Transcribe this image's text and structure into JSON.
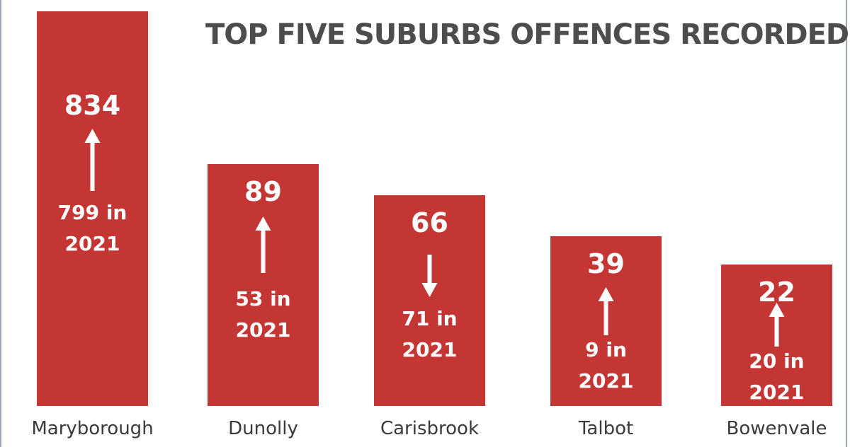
{
  "chart_data": {
    "type": "bar",
    "title": "TOP FIVE SUBURBS OFFENCES RECORDED",
    "xlabel": "",
    "ylabel": "",
    "categories": [
      "Maryborough",
      "Dunolly",
      "Carisbrook",
      "Talbot",
      "Bowenvale"
    ],
    "values": [
      834,
      89,
      66,
      39,
      22
    ],
    "previous_labels": [
      "799 in 2021",
      "53 in 2021",
      "71 in 2021",
      "9 in 2021",
      "20 in 2021"
    ],
    "previous_values": [
      799,
      53,
      71,
      9,
      20
    ],
    "trend": [
      "up",
      "up",
      "down",
      "up",
      "up"
    ],
    "grid": false,
    "legend": "none"
  },
  "colors": {
    "bar": "#c43634",
    "title": "#4d4d4d",
    "text_on_bar": "#ffffff",
    "category": "#3a3a3a"
  }
}
